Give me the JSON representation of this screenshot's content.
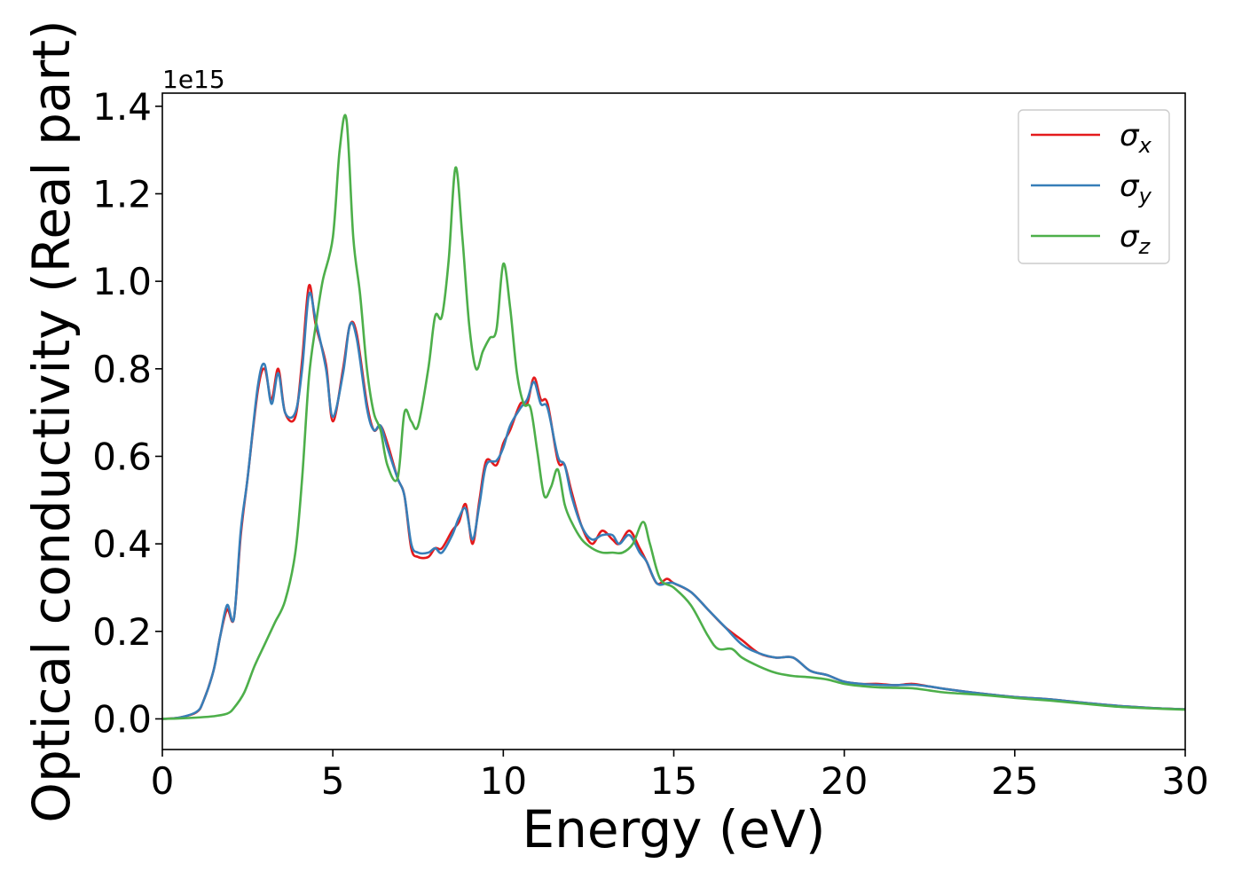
{
  "chart_data": {
    "type": "line",
    "xlabel": "Energy (eV)",
    "ylabel": "Optical conductivity (Real part)",
    "y_offset_label": "1e15",
    "y_scale": 1000000000000000.0,
    "xlim": [
      0,
      30
    ],
    "ylim": [
      -0.07,
      1.43
    ],
    "xticks": [
      0,
      5,
      10,
      15,
      20,
      25,
      30
    ],
    "xtick_labels": [
      "0",
      "5",
      "10",
      "15",
      "20",
      "25",
      "30"
    ],
    "yticks": [
      0.0,
      0.2,
      0.4,
      0.6,
      0.8,
      1.0,
      1.2,
      1.4
    ],
    "ytick_labels": [
      "0.0",
      "0.2",
      "0.4",
      "0.6",
      "0.8",
      "1.0",
      "1.2",
      "1.4"
    ],
    "grid": false,
    "legend_position": "top-right",
    "series": [
      {
        "name": "σ",
        "subscript": "x",
        "color": "#e41a1c",
        "x": [
          0,
          0.5,
          1.0,
          1.2,
          1.5,
          1.7,
          1.9,
          2.1,
          2.3,
          2.5,
          2.8,
          3.0,
          3.2,
          3.4,
          3.6,
          3.9,
          4.1,
          4.3,
          4.5,
          4.8,
          5.0,
          5.3,
          5.5,
          5.7,
          6.0,
          6.2,
          6.4,
          6.6,
          6.9,
          7.1,
          7.3,
          7.5,
          7.8,
          8.0,
          8.2,
          8.5,
          8.7,
          8.9,
          9.1,
          9.3,
          9.5,
          9.8,
          10.0,
          10.2,
          10.5,
          10.7,
          10.9,
          11.1,
          11.3,
          11.6,
          11.8,
          12.0,
          12.3,
          12.6,
          12.9,
          13.2,
          13.4,
          13.7,
          14.0,
          14.2,
          14.5,
          14.8,
          15.0,
          15.5,
          16.0,
          16.5,
          17.0,
          17.5,
          18.0,
          18.5,
          19.0,
          19.5,
          20.0,
          20.5,
          21.0,
          21.5,
          22.0,
          22.5,
          23.0,
          24.0,
          25.0,
          26.0,
          27.0,
          28.0,
          29.0,
          30.0
        ],
        "y": [
          0.0,
          0.003,
          0.015,
          0.04,
          0.11,
          0.19,
          0.25,
          0.23,
          0.42,
          0.55,
          0.75,
          0.8,
          0.73,
          0.8,
          0.7,
          0.69,
          0.82,
          0.99,
          0.9,
          0.81,
          0.68,
          0.8,
          0.9,
          0.88,
          0.72,
          0.66,
          0.67,
          0.63,
          0.55,
          0.51,
          0.39,
          0.37,
          0.37,
          0.39,
          0.39,
          0.43,
          0.45,
          0.49,
          0.4,
          0.5,
          0.59,
          0.58,
          0.63,
          0.66,
          0.72,
          0.72,
          0.78,
          0.73,
          0.72,
          0.59,
          0.58,
          0.52,
          0.44,
          0.4,
          0.43,
          0.41,
          0.4,
          0.43,
          0.39,
          0.36,
          0.31,
          0.32,
          0.31,
          0.29,
          0.25,
          0.21,
          0.18,
          0.15,
          0.14,
          0.14,
          0.11,
          0.1,
          0.085,
          0.08,
          0.08,
          0.077,
          0.08,
          0.074,
          0.068,
          0.058,
          0.05,
          0.045,
          0.037,
          0.03,
          0.025,
          0.022
        ]
      },
      {
        "name": "σ",
        "subscript": "y",
        "color": "#377eb8",
        "x": [
          0,
          0.5,
          1.0,
          1.2,
          1.5,
          1.7,
          1.9,
          2.1,
          2.3,
          2.5,
          2.8,
          3.0,
          3.2,
          3.4,
          3.6,
          3.9,
          4.1,
          4.3,
          4.5,
          4.8,
          5.0,
          5.3,
          5.5,
          5.7,
          6.0,
          6.2,
          6.4,
          6.6,
          6.9,
          7.1,
          7.3,
          7.5,
          7.8,
          8.0,
          8.2,
          8.5,
          8.7,
          8.9,
          9.1,
          9.3,
          9.5,
          9.8,
          10.0,
          10.2,
          10.5,
          10.7,
          10.9,
          11.1,
          11.3,
          11.6,
          11.8,
          12.0,
          12.3,
          12.6,
          12.9,
          13.2,
          13.4,
          13.7,
          14.0,
          14.2,
          14.5,
          14.8,
          15.0,
          15.5,
          16.0,
          16.5,
          17.0,
          17.5,
          18.0,
          18.5,
          19.0,
          19.5,
          20.0,
          20.5,
          21.0,
          21.5,
          22.0,
          22.5,
          23.0,
          24.0,
          25.0,
          26.0,
          27.0,
          28.0,
          29.0,
          30.0
        ],
        "y": [
          0.0,
          0.003,
          0.016,
          0.04,
          0.11,
          0.19,
          0.26,
          0.23,
          0.43,
          0.55,
          0.76,
          0.81,
          0.72,
          0.79,
          0.7,
          0.7,
          0.8,
          0.97,
          0.91,
          0.8,
          0.69,
          0.79,
          0.9,
          0.87,
          0.71,
          0.66,
          0.67,
          0.62,
          0.55,
          0.51,
          0.4,
          0.38,
          0.38,
          0.39,
          0.38,
          0.42,
          0.46,
          0.48,
          0.41,
          0.49,
          0.58,
          0.59,
          0.62,
          0.67,
          0.71,
          0.73,
          0.77,
          0.72,
          0.71,
          0.6,
          0.58,
          0.51,
          0.44,
          0.41,
          0.42,
          0.42,
          0.4,
          0.42,
          0.38,
          0.36,
          0.31,
          0.31,
          0.31,
          0.29,
          0.25,
          0.21,
          0.17,
          0.15,
          0.14,
          0.14,
          0.11,
          0.1,
          0.085,
          0.08,
          0.078,
          0.077,
          0.078,
          0.074,
          0.068,
          0.058,
          0.05,
          0.045,
          0.037,
          0.03,
          0.025,
          0.022
        ]
      },
      {
        "name": "σ",
        "subscript": "z",
        "color": "#4daf4a",
        "x": [
          0,
          0.5,
          1.0,
          1.5,
          1.9,
          2.1,
          2.4,
          2.7,
          3.0,
          3.3,
          3.6,
          3.9,
          4.1,
          4.3,
          4.5,
          4.7,
          5.0,
          5.2,
          5.4,
          5.6,
          5.8,
          6.0,
          6.2,
          6.4,
          6.6,
          6.9,
          7.1,
          7.3,
          7.5,
          7.8,
          8.0,
          8.2,
          8.4,
          8.6,
          8.8,
          9.0,
          9.2,
          9.4,
          9.6,
          9.8,
          10.0,
          10.2,
          10.4,
          10.6,
          10.8,
          11.0,
          11.2,
          11.4,
          11.6,
          11.8,
          12.0,
          12.3,
          12.6,
          12.9,
          13.2,
          13.5,
          13.8,
          14.1,
          14.3,
          14.6,
          15.0,
          15.5,
          16.0,
          16.3,
          16.7,
          17.0,
          17.5,
          18.0,
          18.5,
          19.0,
          19.5,
          20.0,
          20.5,
          21.0,
          21.5,
          22.0,
          22.5,
          23.0,
          24.0,
          25.0,
          26.0,
          27.0,
          28.0,
          29.0,
          30.0
        ],
        "y": [
          0.0,
          0.001,
          0.003,
          0.006,
          0.012,
          0.025,
          0.06,
          0.12,
          0.17,
          0.22,
          0.27,
          0.38,
          0.55,
          0.78,
          0.9,
          1.0,
          1.1,
          1.3,
          1.37,
          1.1,
          0.97,
          0.8,
          0.7,
          0.66,
          0.58,
          0.55,
          0.7,
          0.68,
          0.67,
          0.8,
          0.92,
          0.92,
          1.05,
          1.26,
          1.1,
          0.9,
          0.8,
          0.84,
          0.87,
          0.89,
          1.04,
          0.94,
          0.79,
          0.72,
          0.71,
          0.61,
          0.51,
          0.53,
          0.57,
          0.49,
          0.45,
          0.41,
          0.39,
          0.38,
          0.38,
          0.38,
          0.4,
          0.45,
          0.4,
          0.32,
          0.3,
          0.26,
          0.19,
          0.16,
          0.16,
          0.14,
          0.12,
          0.105,
          0.098,
          0.095,
          0.09,
          0.08,
          0.075,
          0.072,
          0.071,
          0.07,
          0.065,
          0.06,
          0.055,
          0.048,
          0.042,
          0.035,
          0.028,
          0.024,
          0.021
        ]
      }
    ]
  }
}
